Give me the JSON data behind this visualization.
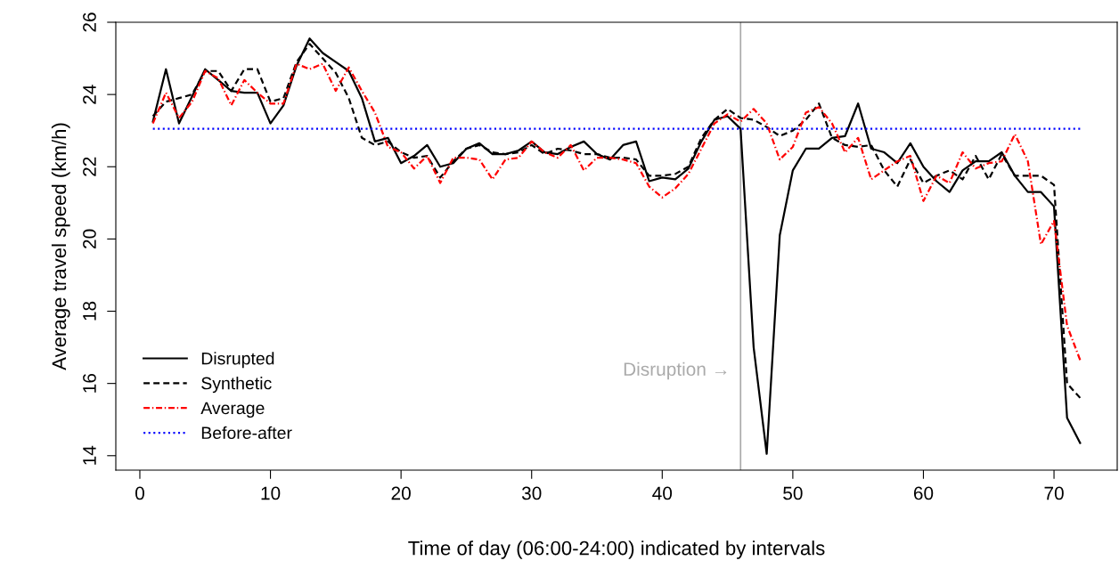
{
  "chart_data": {
    "type": "line",
    "xlabel": "Time of day (06:00-24:00) indicated by intervals",
    "ylabel": "Average travel speed (km/h)",
    "xlim": [
      -1.84,
      74.84
    ],
    "ylim": [
      13.6,
      26
    ],
    "xticks": [
      0,
      10,
      20,
      30,
      40,
      50,
      60,
      70
    ],
    "yticks": [
      14,
      16,
      18,
      20,
      22,
      24,
      26
    ],
    "grid": false,
    "legend": "bottom left",
    "ref_lines": [
      {
        "axis": "x",
        "value": 46,
        "label": "Disruption →",
        "color": "#aaaaaa",
        "line_style": "solid"
      }
    ],
    "series": [
      {
        "name": "Disrupted",
        "color": "#000000",
        "line_style": "solid",
        "x": [
          1,
          2,
          3,
          4,
          5,
          6,
          7,
          8,
          9,
          10,
          11,
          12,
          13,
          14,
          15,
          16,
          17,
          18,
          19,
          20,
          21,
          22,
          23,
          24,
          25,
          26,
          27,
          28,
          29,
          30,
          31,
          32,
          33,
          34,
          35,
          36,
          37,
          38,
          39,
          40,
          41,
          42,
          43,
          44,
          45,
          46,
          47,
          48,
          49,
          50,
          51,
          52,
          53,
          54,
          55,
          56,
          57,
          58,
          59,
          60,
          61,
          62,
          63,
          64,
          65,
          66,
          67,
          68,
          69,
          70,
          71,
          72
        ],
        "values": [
          23.25,
          24.7,
          23.2,
          23.95,
          24.7,
          24.4,
          24.1,
          24.05,
          24.05,
          23.2,
          23.7,
          24.8,
          25.55,
          25.15,
          24.9,
          24.65,
          23.9,
          22.7,
          22.8,
          22.1,
          22.3,
          22.6,
          22.0,
          22.1,
          22.5,
          22.65,
          22.35,
          22.35,
          22.45,
          22.7,
          22.4,
          22.35,
          22.55,
          22.7,
          22.35,
          22.2,
          22.6,
          22.7,
          21.6,
          21.7,
          21.65,
          21.95,
          22.7,
          23.3,
          23.4,
          23.05,
          17.0,
          14.05,
          20.1,
          21.9,
          22.5,
          22.5,
          22.8,
          22.85,
          23.75,
          22.5,
          22.4,
          22.1,
          22.65,
          22.0,
          21.6,
          21.3,
          21.9,
          22.15,
          22.15,
          22.4,
          21.75,
          21.3,
          21.3,
          20.9,
          15.05,
          14.35
        ]
      },
      {
        "name": "Synthetic",
        "color": "#000000",
        "line_style": "dashed",
        "x": [
          1,
          2,
          3,
          4,
          5,
          6,
          7,
          8,
          9,
          10,
          11,
          12,
          13,
          14,
          15,
          16,
          17,
          18,
          19,
          20,
          21,
          22,
          23,
          24,
          25,
          26,
          27,
          28,
          29,
          30,
          31,
          32,
          33,
          34,
          35,
          36,
          37,
          38,
          39,
          40,
          41,
          42,
          43,
          44,
          45,
          46,
          47,
          48,
          49,
          50,
          51,
          52,
          53,
          54,
          55,
          56,
          57,
          58,
          59,
          60,
          61,
          62,
          63,
          64,
          65,
          66,
          67,
          68,
          69,
          70,
          71,
          72
        ],
        "values": [
          23.4,
          23.8,
          23.9,
          24.0,
          24.65,
          24.65,
          24.1,
          24.7,
          24.7,
          23.8,
          23.9,
          24.9,
          25.4,
          25.0,
          24.6,
          23.9,
          22.8,
          22.6,
          22.7,
          22.4,
          22.25,
          22.3,
          21.7,
          22.15,
          22.5,
          22.6,
          22.4,
          22.35,
          22.4,
          22.6,
          22.35,
          22.5,
          22.45,
          22.35,
          22.35,
          22.25,
          22.25,
          22.2,
          21.75,
          21.75,
          21.8,
          22.0,
          22.8,
          23.3,
          23.6,
          23.35,
          23.3,
          23.1,
          22.85,
          23.0,
          23.3,
          23.75,
          22.8,
          22.6,
          22.55,
          22.6,
          21.9,
          21.45,
          22.2,
          21.55,
          21.75,
          21.9,
          21.65,
          22.3,
          21.65,
          22.35,
          21.75,
          21.75,
          21.75,
          21.5,
          16.0,
          15.6
        ]
      },
      {
        "name": "Average",
        "color": "#ff0000",
        "line_style": "dashdot",
        "x": [
          1,
          2,
          3,
          4,
          5,
          6,
          7,
          8,
          9,
          10,
          11,
          12,
          13,
          14,
          15,
          16,
          17,
          18,
          19,
          20,
          21,
          22,
          23,
          24,
          25,
          26,
          27,
          28,
          29,
          30,
          31,
          32,
          33,
          34,
          35,
          36,
          37,
          38,
          39,
          40,
          41,
          42,
          43,
          44,
          45,
          46,
          47,
          48,
          49,
          50,
          51,
          52,
          53,
          54,
          55,
          56,
          57,
          58,
          59,
          60,
          61,
          62,
          63,
          64,
          65,
          66,
          67,
          68,
          69,
          70,
          71,
          72
        ],
        "values": [
          23.2,
          24.05,
          23.35,
          23.8,
          24.65,
          24.45,
          23.7,
          24.4,
          24.05,
          23.75,
          23.75,
          24.85,
          24.7,
          24.85,
          24.1,
          24.75,
          24.1,
          23.5,
          22.55,
          22.4,
          21.95,
          22.3,
          21.55,
          22.25,
          22.25,
          22.2,
          21.65,
          22.2,
          22.25,
          22.7,
          22.4,
          22.25,
          22.6,
          21.9,
          22.25,
          22.25,
          22.2,
          22.1,
          21.45,
          21.15,
          21.4,
          21.8,
          22.5,
          23.2,
          23.45,
          23.25,
          23.6,
          23.2,
          22.2,
          22.55,
          23.5,
          23.65,
          23.2,
          22.4,
          22.8,
          21.65,
          21.9,
          22.15,
          22.3,
          21.05,
          21.75,
          21.55,
          22.4,
          21.95,
          22.1,
          22.15,
          22.9,
          22.15,
          19.85,
          20.5,
          17.6,
          16.65
        ]
      },
      {
        "name": "Before-after",
        "color": "#0000ff",
        "line_style": "dotted",
        "x": [
          1,
          72
        ],
        "values": [
          23.05,
          23.05
        ]
      }
    ]
  }
}
